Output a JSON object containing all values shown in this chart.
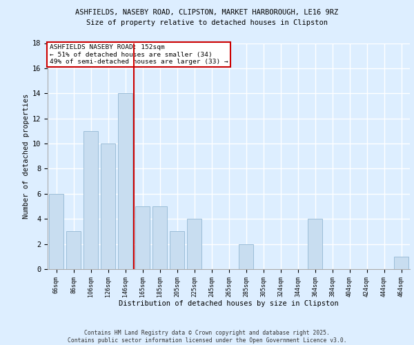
{
  "title1": "ASHFIELDS, NASEBY ROAD, CLIPSTON, MARKET HARBOROUGH, LE16 9RZ",
  "title2": "Size of property relative to detached houses in Clipston",
  "xlabel": "Distribution of detached houses by size in Clipston",
  "ylabel": "Number of detached properties",
  "categories": [
    "66sqm",
    "86sqm",
    "106sqm",
    "126sqm",
    "146sqm",
    "165sqm",
    "185sqm",
    "205sqm",
    "225sqm",
    "245sqm",
    "265sqm",
    "285sqm",
    "305sqm",
    "324sqm",
    "344sqm",
    "364sqm",
    "384sqm",
    "404sqm",
    "424sqm",
    "444sqm",
    "464sqm"
  ],
  "values": [
    6,
    3,
    11,
    10,
    14,
    5,
    5,
    3,
    4,
    0,
    0,
    2,
    0,
    0,
    0,
    4,
    0,
    0,
    0,
    0,
    1
  ],
  "bar_color": "#c8ddf0",
  "bar_edge_color": "#9bbdd8",
  "vline_x": 4.5,
  "vline_color": "#cc0000",
  "annotation_text": "ASHFIELDS NASEBY ROAD: 152sqm\n← 51% of detached houses are smaller (34)\n49% of semi-detached houses are larger (33) →",
  "annotation_box_color": "#ffffff",
  "annotation_box_edge": "#cc0000",
  "ylim": [
    0,
    18
  ],
  "yticks": [
    0,
    2,
    4,
    6,
    8,
    10,
    12,
    14,
    16,
    18
  ],
  "footer": "Contains HM Land Registry data © Crown copyright and database right 2025.\nContains public sector information licensed under the Open Government Licence v3.0.",
  "background_color": "#ddeeff",
  "grid_color": "#ffffff"
}
